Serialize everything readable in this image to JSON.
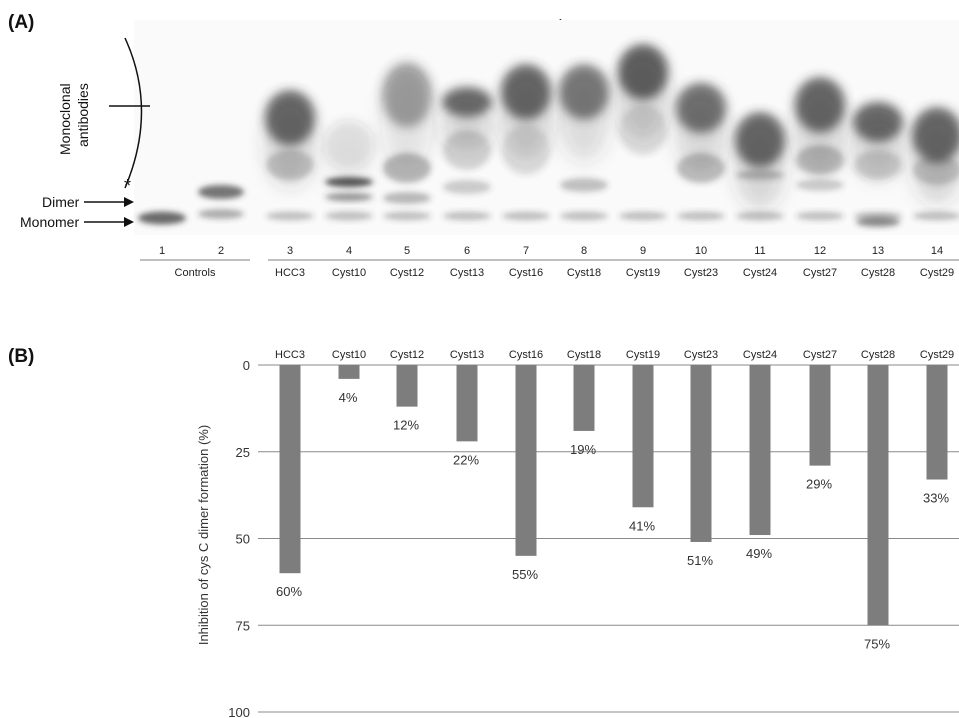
{
  "panel_a": {
    "label": "(A)",
    "plus_mark": "+",
    "star_mark": "*",
    "annotations": {
      "monoclonal_line1": "Monoclonal",
      "monoclonal_line2": "antibodies",
      "dimer": "Dimer",
      "monomer": "Monomer"
    },
    "lane_numbers": [
      "1",
      "2",
      "3",
      "4",
      "5",
      "6",
      "7",
      "8",
      "9",
      "10",
      "11",
      "12",
      "13",
      "14"
    ],
    "lane_names": [
      "HCC3",
      "Cyst10",
      "Cyst12",
      "Cyst13",
      "Cyst16",
      "Cyst18",
      "Cyst19",
      "Cyst23",
      "Cyst24",
      "Cyst27",
      "Cyst28",
      "Cyst29"
    ],
    "controls_label": "Controls"
  },
  "panel_b": {
    "label": "(B)"
  },
  "chart_data": {
    "type": "bar",
    "title": "",
    "xlabel": "",
    "ylabel": "Inhibition of cys C dimer formation (%)",
    "categories": [
      "HCC3",
      "Cyst10",
      "Cyst12",
      "Cyst13",
      "Cyst16",
      "Cyst18",
      "Cyst19",
      "Cyst23",
      "Cyst24",
      "Cyst27",
      "Cyst28",
      "Cyst29"
    ],
    "values": [
      60,
      4,
      12,
      22,
      55,
      19,
      41,
      51,
      49,
      29,
      75,
      33
    ],
    "value_labels": [
      "60%",
      "4%",
      "12%",
      "22%",
      "55%",
      "19%",
      "41%",
      "51%",
      "49%",
      "29%",
      "75%",
      "33%"
    ],
    "ylim": [
      0,
      100
    ],
    "y_inverted": true,
    "yticks": [
      "0",
      "25",
      "50",
      "75",
      "100"
    ],
    "grid": true,
    "bar_color": "#7d7d7d"
  }
}
